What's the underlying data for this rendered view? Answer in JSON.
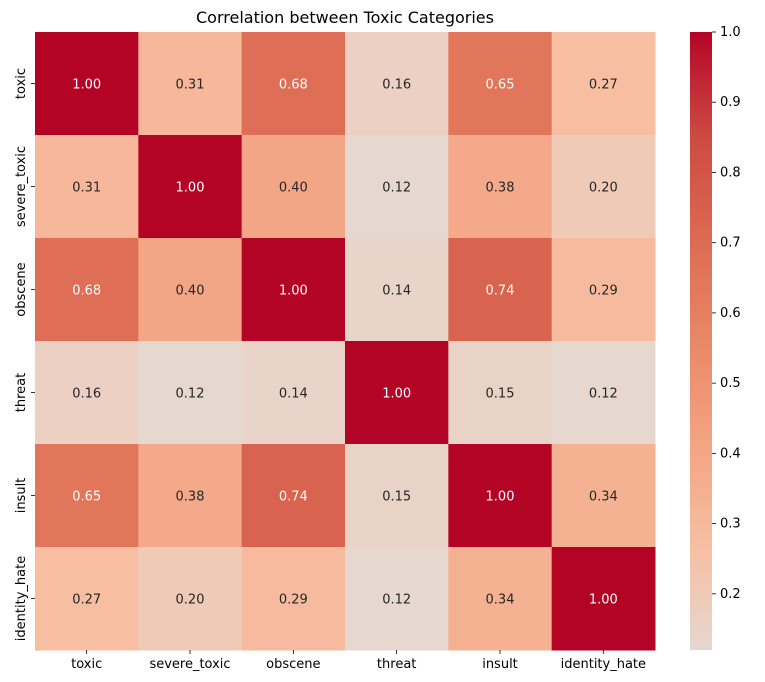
{
  "chart_data": {
    "type": "heatmap",
    "title": "Correlation between Toxic Categories",
    "x_categories": [
      "toxic",
      "severe_toxic",
      "obscene",
      "threat",
      "insult",
      "identity_hate"
    ],
    "y_categories": [
      "toxic",
      "severe_toxic",
      "obscene",
      "threat",
      "insult",
      "identity_hate"
    ],
    "values": [
      [
        1.0,
        0.31,
        0.68,
        0.16,
        0.65,
        0.27
      ],
      [
        0.31,
        1.0,
        0.4,
        0.12,
        0.38,
        0.2
      ],
      [
        0.68,
        0.4,
        1.0,
        0.14,
        0.74,
        0.29
      ],
      [
        0.16,
        0.12,
        0.14,
        1.0,
        0.15,
        0.12
      ],
      [
        0.65,
        0.38,
        0.74,
        0.15,
        1.0,
        0.34
      ],
      [
        0.27,
        0.2,
        0.29,
        0.12,
        0.34,
        1.0
      ]
    ],
    "cell_labels": [
      [
        "1.00",
        "0.31",
        "0.68",
        "0.16",
        "0.65",
        "0.27"
      ],
      [
        "0.31",
        "1.00",
        "0.40",
        "0.12",
        "0.38",
        "0.20"
      ],
      [
        "0.68",
        "0.40",
        "1.00",
        "0.14",
        "0.74",
        "0.29"
      ],
      [
        "0.16",
        "0.12",
        "0.14",
        "1.00",
        "0.15",
        "0.12"
      ],
      [
        "0.65",
        "0.38",
        "0.74",
        "0.15",
        "1.00",
        "0.34"
      ],
      [
        "0.27",
        "0.20",
        "0.29",
        "0.12",
        "0.34",
        "1.00"
      ]
    ],
    "colorbar": {
      "range": [
        0.12,
        1.0
      ],
      "ticks": [
        0.2,
        0.3,
        0.4,
        0.5,
        0.6,
        0.7,
        0.8,
        0.9,
        1.0
      ],
      "tick_labels": [
        "0.2",
        "0.3",
        "0.4",
        "0.5",
        "0.6",
        "0.7",
        "0.8",
        "0.9",
        "1.0"
      ]
    },
    "colormap": "coolwarm (centered at 0)",
    "colormap_stops": [
      "#e6d7cf",
      "#f7bfa3",
      "#f3a483",
      "#e98867",
      "#dc6a52",
      "#cc4a41",
      "#b40426"
    ]
  }
}
